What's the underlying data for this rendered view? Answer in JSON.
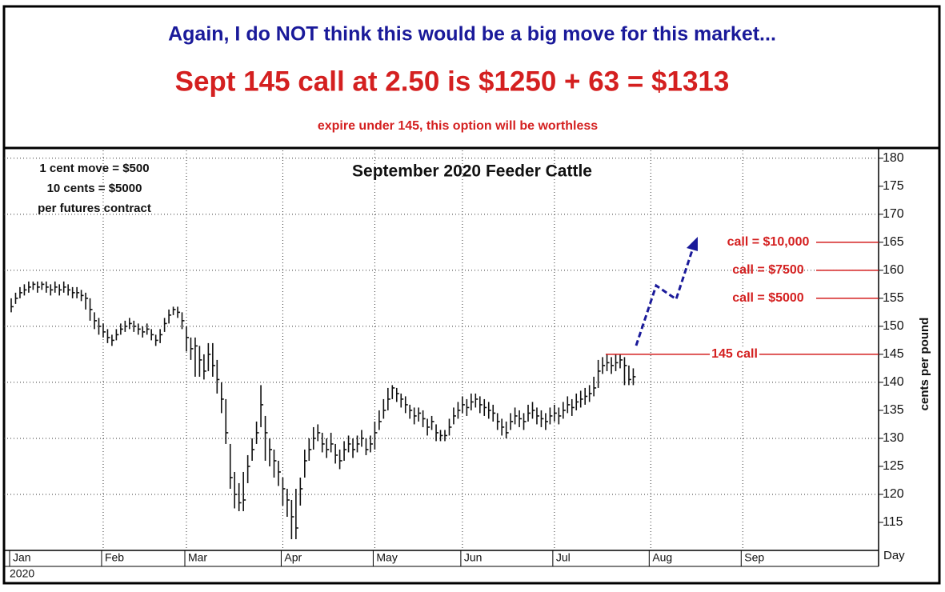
{
  "chart_data": {
    "type": "bar",
    "header": "Again, I do NOT think this would be a big move for this market...",
    "headline": "Sept 145 call at 2.50 is $1250 + 63 = $1313",
    "subheadline": "expire under 145, this option will be worthless",
    "title": "September 2020 Feeder Cattle",
    "notes": [
      "1 cent move = $500",
      "10 cents = $5000",
      "per futures contract"
    ],
    "ylabel": "cents per pound",
    "xlabel": "Day",
    "year_label": "2020",
    "ylim": [
      110,
      181.4
    ],
    "yticks": [
      115,
      120,
      125,
      130,
      135,
      140,
      145,
      150,
      155,
      160,
      165,
      170,
      175,
      180
    ],
    "xlim": [
      0,
      198
    ],
    "xticks": [
      {
        "value": 0,
        "label": "Jan"
      },
      {
        "value": 21,
        "label": "Feb"
      },
      {
        "value": 40,
        "label": "Mar"
      },
      {
        "value": 62,
        "label": "Apr"
      },
      {
        "value": 83,
        "label": "May"
      },
      {
        "value": 103,
        "label": "Jun"
      },
      {
        "value": 124,
        "label": "Jul"
      },
      {
        "value": 146,
        "label": "Aug"
      },
      {
        "value": 167,
        "label": "Sep"
      }
    ],
    "grid": true,
    "color": "#111111",
    "high": [
      155,
      156,
      157,
      157.5,
      158,
      158,
      158,
      158,
      158,
      157.5,
      158,
      157.5,
      158,
      157.5,
      157,
      157,
      156.5,
      156,
      155,
      152.5,
      151.5,
      150.5,
      149.5,
      148.5,
      149.5,
      150.5,
      151,
      151.5,
      151,
      150.5,
      150,
      150.5,
      149.5,
      148.5,
      149.5,
      151.5,
      153,
      153.5,
      153.5,
      152.5,
      150,
      148,
      148,
      146.5,
      145,
      147,
      147,
      144,
      140,
      137,
      129,
      124,
      122,
      124,
      127,
      130,
      133,
      139.5,
      134,
      130,
      128,
      126,
      123,
      121,
      119,
      121,
      123,
      128,
      130,
      132,
      132.5,
      131,
      130,
      131,
      129,
      128,
      129.5,
      130.5,
      130,
      130.5,
      131.5,
      130,
      130.5,
      133,
      135,
      137,
      139,
      139.5,
      139,
      138,
      137.5,
      136,
      135.5,
      135.5,
      135,
      133.5,
      134,
      132.5,
      131.5,
      131.5,
      133.5,
      135.5,
      136.5,
      137.5,
      137,
      138,
      138,
      137.5,
      137,
      136.5,
      136,
      134.5,
      133.5,
      133,
      134.5,
      135.5,
      135,
      134.5,
      136,
      136.5,
      135.5,
      135,
      134.5,
      135.5,
      136,
      135.5,
      136.5,
      137.5,
      137,
      138,
      138.5,
      139,
      139.5,
      141,
      144,
      144.5,
      145,
      144.5,
      145,
      145,
      144.5,
      143,
      142.5
    ],
    "low": [
      152.5,
      154,
      155,
      155.5,
      156,
      156.5,
      156,
      156.5,
      156,
      155.5,
      156,
      155.5,
      156,
      155.5,
      155,
      155,
      154.5,
      153,
      151,
      149.5,
      148.5,
      148,
      147,
      146.5,
      147.5,
      148.5,
      149,
      149.5,
      149,
      148.5,
      148,
      148.5,
      147.5,
      146.5,
      147,
      149,
      150.5,
      152,
      151.5,
      149.5,
      145.5,
      144,
      141,
      141,
      140.5,
      142,
      141,
      138,
      134.5,
      129,
      121,
      117.5,
      117,
      117,
      122,
      126,
      129,
      132,
      126,
      125,
      123,
      121.5,
      118,
      116,
      112,
      112,
      118,
      123,
      126,
      128,
      129.5,
      127.5,
      126.5,
      127.5,
      125.5,
      124.5,
      126,
      127.5,
      126.5,
      127.5,
      128.5,
      127,
      127.5,
      128,
      131.5,
      133.5,
      135,
      137,
      136.5,
      135.5,
      134.5,
      133.5,
      132.5,
      133,
      132,
      130.5,
      131.5,
      129.5,
      129.5,
      129.5,
      130.5,
      132.5,
      133.5,
      134.5,
      134,
      135,
      135.5,
      134.5,
      134,
      133.5,
      133,
      131.5,
      130.5,
      130,
      131.5,
      132.5,
      132,
      131.5,
      133,
      133.5,
      132.5,
      132,
      131.5,
      132.5,
      133,
      132.5,
      133.5,
      134.5,
      134,
      135,
      135.5,
      136,
      136.5,
      137.5,
      139,
      141.5,
      142,
      141.5,
      142,
      142.5,
      139.5,
      139.5,
      139.5
    ],
    "close": [
      153.5,
      155,
      156,
      156.5,
      157,
      157.5,
      157,
      157.5,
      157,
      156.5,
      157,
      156.5,
      157,
      156.5,
      156,
      156,
      155.5,
      155,
      153,
      151,
      150,
      149,
      148,
      147.5,
      148.5,
      149.5,
      150,
      150.5,
      150,
      149.5,
      149,
      149.5,
      148.5,
      147.5,
      148.5,
      150.5,
      152,
      153,
      152.5,
      151,
      148,
      146,
      146.5,
      144,
      142,
      145,
      143,
      140.5,
      137,
      131,
      123,
      120,
      118.5,
      119,
      125,
      128,
      131,
      136,
      131,
      128,
      126,
      124,
      121,
      119,
      116,
      114,
      121,
      126,
      128,
      130,
      131,
      129,
      128,
      129,
      127,
      126,
      128,
      129,
      128,
      129,
      130,
      128,
      129,
      131,
      133,
      135,
      137,
      139,
      138,
      137,
      136,
      135,
      134,
      134.5,
      133.5,
      132,
      133,
      131,
      130.5,
      130.5,
      132,
      134,
      135,
      136,
      135.5,
      136.5,
      137,
      136,
      135.5,
      135,
      134.5,
      133,
      132,
      131,
      133,
      134,
      133.5,
      133,
      134.5,
      135,
      134,
      133.5,
      133,
      134,
      134.5,
      134,
      135,
      136,
      135.5,
      136.5,
      137,
      137.5,
      138,
      139,
      142,
      143,
      143.5,
      143,
      143.5,
      144,
      143,
      140.5,
      141
    ],
    "levels": [
      {
        "label": "call = $10,000",
        "value": 165
      },
      {
        "label": "call = $7500",
        "value": 160
      },
      {
        "label": "call = $5000",
        "value": 155
      },
      {
        "label": "145 call",
        "value": 145
      }
    ],
    "level_color": "#d42020"
  }
}
